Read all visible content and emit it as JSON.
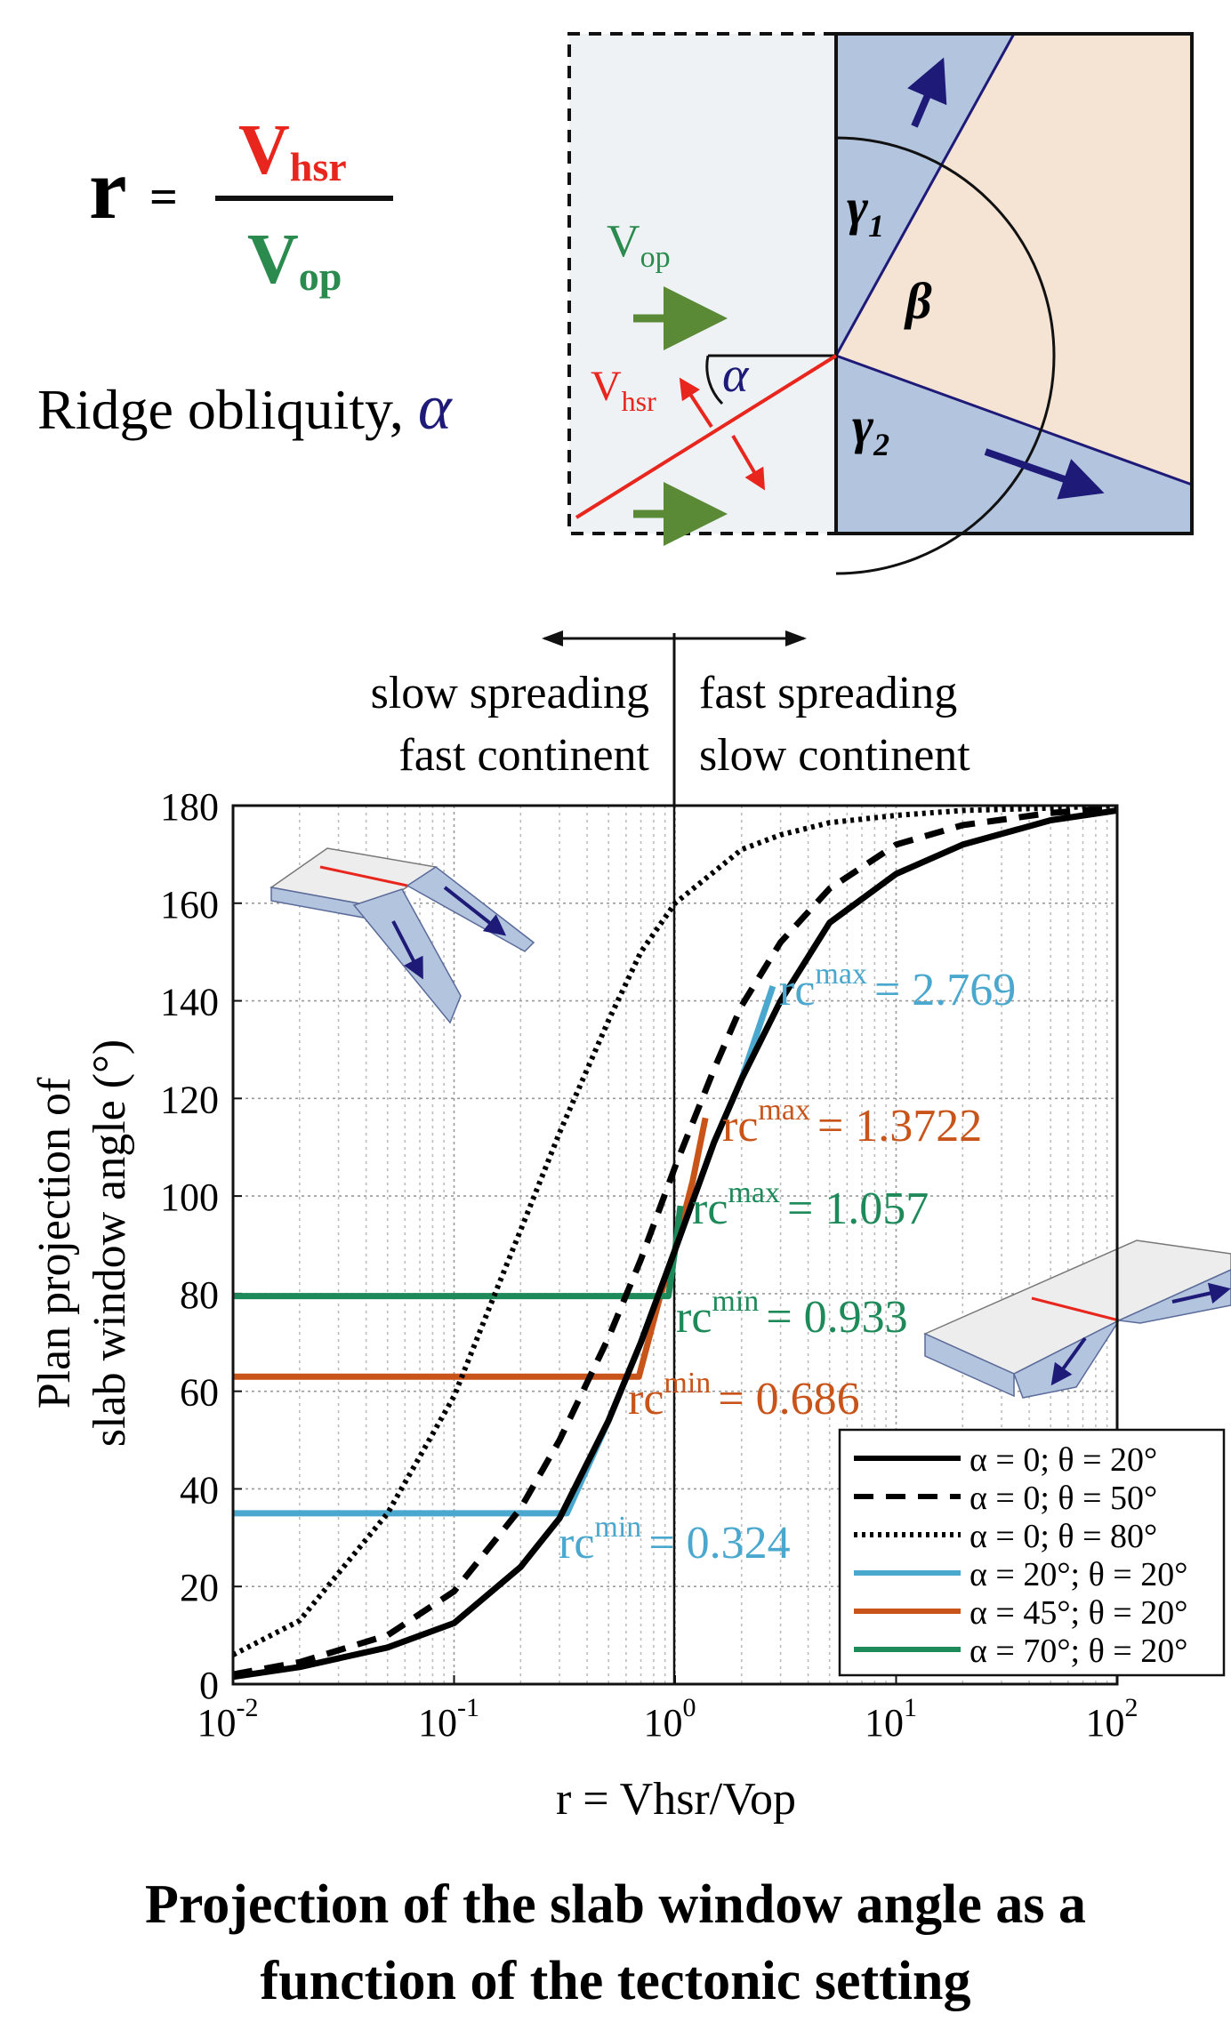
{
  "formula": {
    "lhs": "r",
    "equals": "=",
    "numerator": "V",
    "numerator_sub": "hsr",
    "denominator": "V",
    "denominator_sub": "op"
  },
  "obliquity_label": "Ridge obliquity, ",
  "obliquity_symbol": "α",
  "schematic": {
    "vop_label": "V",
    "vop_sub": "op",
    "vhsr_label": "V",
    "vhsr_sub": "hsr",
    "alpha": "α",
    "gamma1": "γ",
    "gamma1_sub": "1",
    "gamma2": "γ",
    "gamma2_sub": "2",
    "beta": "β"
  },
  "regimes": {
    "left_line1": "slow spreading",
    "left_line2": "fast continent",
    "right_line1": "fast spreading",
    "right_line2": "slow continent"
  },
  "caption_line1": "Projection of the slab window angle as a",
  "caption_line2": "function of the tectonic setting",
  "colors": {
    "red": "#e8261e",
    "green": "#2b8a4e",
    "olive_arrow": "#5a8a36",
    "blue_text": "#1d1a78",
    "slab_blue": "#b3c4de",
    "continent": "#f5e3d3",
    "ocean": "#eef2f5",
    "cyan": "#4aa8cf",
    "orange": "#c9541a",
    "teal": "#1e8a5a"
  },
  "chart_data": {
    "type": "line",
    "xscale": "log",
    "xlabel": "r = Vhsr/Vop",
    "ylabel": [
      "Plan projection of",
      "slab window angle (°)"
    ],
    "xlim": [
      0.01,
      100
    ],
    "ylim": [
      0,
      180
    ],
    "x_ticks": [
      {
        "base": "10",
        "exp": "-2"
      },
      {
        "base": "10",
        "exp": "-1"
      },
      {
        "base": "10",
        "exp": "0"
      },
      {
        "base": "10",
        "exp": "1"
      },
      {
        "base": "10",
        "exp": "2"
      }
    ],
    "y_ticks": [
      0,
      20,
      40,
      60,
      80,
      100,
      120,
      140,
      160,
      180
    ],
    "grid": true,
    "legend_position": "bottom-right",
    "series": [
      {
        "name": "α = 0; θ = 20°",
        "style": "solid",
        "color": "#000000",
        "x": [
          0.01,
          0.02,
          0.05,
          0.1,
          0.2,
          0.3,
          0.5,
          0.7,
          1,
          1.5,
          2,
          3,
          5,
          10,
          20,
          50,
          100
        ],
        "y": [
          1.5,
          3.5,
          7.5,
          12.5,
          24,
          34,
          54,
          70,
          89,
          111,
          124,
          140,
          156,
          166,
          172,
          177,
          179
        ]
      },
      {
        "name": "α = 0; θ = 50°",
        "style": "dashed",
        "color": "#000000",
        "x": [
          0.01,
          0.02,
          0.05,
          0.1,
          0.2,
          0.3,
          0.5,
          0.7,
          1,
          1.5,
          2,
          3,
          5,
          10,
          20,
          50,
          100
        ],
        "y": [
          2,
          4.5,
          10,
          19,
          36,
          50,
          71,
          87,
          106,
          126,
          139,
          152,
          163,
          172,
          176,
          178.5,
          179.5
        ]
      },
      {
        "name": "α = 0; θ = 80°",
        "style": "dotted",
        "color": "#000000",
        "x": [
          0.01,
          0.02,
          0.05,
          0.1,
          0.15,
          0.2,
          0.3,
          0.5,
          0.7,
          1,
          2,
          3,
          5,
          10,
          20,
          50,
          100
        ],
        "y": [
          6,
          13,
          35,
          59,
          79,
          93,
          113,
          136,
          150,
          160,
          171,
          174,
          176.5,
          178,
          179,
          179.5,
          180
        ]
      },
      {
        "name": "α = 20°; θ = 20°",
        "style": "solid",
        "color": "#4aa8cf",
        "x": [
          0.01,
          0.324,
          0.324,
          0.5,
          0.7,
          1,
          1.5,
          2,
          2.769
        ],
        "y": [
          35,
          35,
          35,
          54,
          70,
          89,
          111,
          124,
          143
        ]
      },
      {
        "name": "α = 45°; θ = 20°",
        "style": "solid",
        "color": "#c9541a",
        "x": [
          0.01,
          0.686,
          0.686,
          0.85,
          1,
          1.2,
          1.3722
        ],
        "y": [
          63,
          63,
          63,
          79,
          89,
          103,
          116
        ]
      },
      {
        "name": "α = 70°; θ = 20°",
        "style": "solid",
        "color": "#1e8a5a",
        "x": [
          0.01,
          0.933,
          0.933,
          1,
          1.057
        ],
        "y": [
          79.5,
          79.5,
          79.5,
          89,
          98
        ]
      }
    ],
    "annotations": [
      {
        "base": "rc",
        "sup": "max",
        "value": "= 2.769",
        "color": "#4aa8cf"
      },
      {
        "base": "rc",
        "sup": "max",
        "value": "= 1.3722",
        "color": "#c9541a"
      },
      {
        "base": "rc",
        "sup": "max",
        "value": "= 1.057",
        "color": "#1e8a5a"
      },
      {
        "base": "rc",
        "sup": "min",
        "value": "= 0.933",
        "color": "#1e8a5a"
      },
      {
        "base": "rc",
        "sup": "min",
        "value": "= 0.686",
        "color": "#c9541a"
      },
      {
        "base": "rc",
        "sup": "min",
        "value": "= 0.324",
        "color": "#4aa8cf"
      }
    ]
  }
}
